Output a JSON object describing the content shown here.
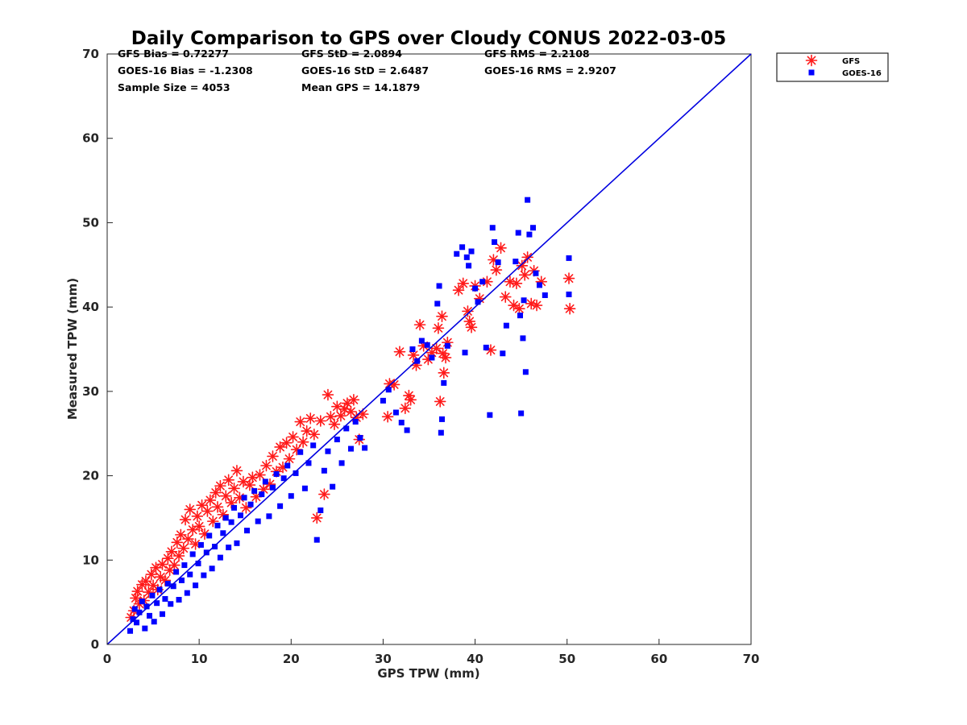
{
  "chart_data": {
    "type": "scatter",
    "title": "Daily Comparison to GPS over Cloudy CONUS 2022-03-05",
    "xlabel": "GPS TPW (mm)",
    "ylabel": "Measured TPW (mm)",
    "xlim": [
      0,
      70
    ],
    "ylim": [
      0,
      70
    ],
    "xticks": [
      "0",
      "10",
      "20",
      "30",
      "40",
      "50",
      "60",
      "70"
    ],
    "yticks": [
      "0",
      "10",
      "20",
      "30",
      "40",
      "50",
      "60",
      "70"
    ],
    "grid": false,
    "legend_position": "outside-top-right",
    "reference_line": {
      "x": [
        0,
        70
      ],
      "y": [
        0,
        70
      ],
      "color": "#0000e0"
    },
    "stats": [
      [
        "GFS Bias = 0.72277",
        "GFS StD = 2.0894",
        "GFS RMS = 2.2108"
      ],
      [
        "GOES-16 Bias = -1.2308",
        "GOES-16 StD = 2.6487",
        "GOES-16 RMS = 2.9207"
      ],
      [
        "Sample Size = 4053",
        "Mean GPS = 14.1879",
        ""
      ]
    ],
    "series": [
      {
        "name": "GFS",
        "marker": "asterisk",
        "color": "#ff1a1a",
        "points": [
          [
            2.6,
            3.2
          ],
          [
            2.9,
            4.0
          ],
          [
            3.1,
            5.5
          ],
          [
            3.3,
            6.3
          ],
          [
            3.5,
            4.8
          ],
          [
            3.8,
            7.1
          ],
          [
            4.0,
            5.2
          ],
          [
            4.2,
            7.5
          ],
          [
            4.5,
            6.2
          ],
          [
            4.8,
            8.3
          ],
          [
            5.0,
            7.0
          ],
          [
            5.3,
            9.1
          ],
          [
            5.5,
            6.5
          ],
          [
            5.8,
            8.0
          ],
          [
            6.0,
            9.5
          ],
          [
            6.3,
            7.6
          ],
          [
            6.6,
            10.2
          ],
          [
            6.8,
            8.8
          ],
          [
            7.0,
            11.0
          ],
          [
            7.3,
            9.4
          ],
          [
            7.6,
            12.1
          ],
          [
            7.8,
            10.5
          ],
          [
            8.0,
            13.0
          ],
          [
            8.3,
            11.4
          ],
          [
            8.5,
            14.8
          ],
          [
            8.8,
            12.5
          ],
          [
            9.0,
            16.0
          ],
          [
            9.3,
            13.6
          ],
          [
            9.6,
            11.9
          ],
          [
            9.8,
            15.2
          ],
          [
            10.0,
            14.0
          ],
          [
            10.3,
            16.5
          ],
          [
            10.6,
            13.1
          ],
          [
            10.9,
            15.8
          ],
          [
            11.2,
            17.1
          ],
          [
            11.5,
            14.6
          ],
          [
            11.8,
            18.0
          ],
          [
            12.0,
            16.3
          ],
          [
            12.3,
            18.8
          ],
          [
            12.6,
            15.4
          ],
          [
            12.9,
            17.6
          ],
          [
            13.2,
            19.5
          ],
          [
            13.5,
            16.8
          ],
          [
            13.8,
            18.5
          ],
          [
            14.1,
            20.6
          ],
          [
            14.4,
            17.4
          ],
          [
            14.8,
            19.3
          ],
          [
            15.1,
            16.2
          ],
          [
            15.5,
            18.9
          ],
          [
            15.8,
            19.8
          ],
          [
            16.2,
            17.5
          ],
          [
            16.6,
            20.1
          ],
          [
            17.0,
            18.4
          ],
          [
            17.3,
            21.2
          ],
          [
            17.7,
            19.0
          ],
          [
            18.0,
            22.3
          ],
          [
            18.4,
            20.5
          ],
          [
            18.8,
            23.4
          ],
          [
            19.1,
            21.0
          ],
          [
            19.5,
            23.9
          ],
          [
            19.8,
            22.0
          ],
          [
            20.2,
            24.6
          ],
          [
            20.6,
            23.1
          ],
          [
            21.0,
            26.4
          ],
          [
            21.3,
            24.0
          ],
          [
            21.7,
            25.3
          ],
          [
            22.1,
            26.8
          ],
          [
            22.5,
            24.9
          ],
          [
            22.8,
            15.0
          ],
          [
            23.2,
            26.5
          ],
          [
            23.6,
            17.8
          ],
          [
            24.0,
            29.6
          ],
          [
            24.3,
            27.0
          ],
          [
            24.7,
            26.1
          ],
          [
            25.0,
            28.2
          ],
          [
            25.4,
            27.1
          ],
          [
            25.8,
            27.9
          ],
          [
            26.1,
            28.6
          ],
          [
            26.5,
            27.6
          ],
          [
            26.8,
            29.0
          ],
          [
            27.1,
            26.9
          ],
          [
            27.4,
            24.3
          ],
          [
            27.8,
            27.3
          ],
          [
            30.5,
            27.0
          ],
          [
            31.2,
            30.8
          ],
          [
            31.8,
            34.7
          ],
          [
            32.4,
            28.0
          ],
          [
            32.8,
            29.5
          ],
          [
            33.3,
            34.3
          ],
          [
            33.6,
            33.1
          ],
          [
            34.0,
            37.9
          ],
          [
            34.4,
            35.4
          ],
          [
            34.9,
            33.8
          ],
          [
            35.3,
            34.6
          ],
          [
            35.8,
            35.1
          ],
          [
            36.0,
            37.5
          ],
          [
            36.2,
            28.8
          ],
          [
            36.4,
            38.9
          ],
          [
            36.6,
            32.2
          ],
          [
            36.8,
            34.0
          ],
          [
            37.0,
            35.8
          ],
          [
            38.2,
            42.0
          ],
          [
            38.7,
            42.8
          ],
          [
            39.2,
            39.5
          ],
          [
            39.4,
            38.3
          ],
          [
            39.6,
            37.6
          ],
          [
            40.0,
            42.5
          ],
          [
            40.5,
            41.0
          ],
          [
            41.3,
            43.0
          ],
          [
            41.7,
            34.9
          ],
          [
            42.0,
            45.6
          ],
          [
            42.3,
            44.4
          ],
          [
            42.8,
            47.0
          ],
          [
            43.3,
            41.2
          ],
          [
            43.8,
            43.0
          ],
          [
            44.2,
            40.2
          ],
          [
            44.5,
            42.8
          ],
          [
            44.8,
            39.8
          ],
          [
            45.1,
            44.9
          ],
          [
            45.4,
            43.8
          ],
          [
            45.7,
            45.9
          ],
          [
            46.1,
            40.4
          ],
          [
            46.4,
            44.3
          ],
          [
            46.7,
            40.2
          ],
          [
            47.2,
            43.0
          ],
          [
            50.2,
            43.4
          ],
          [
            50.3,
            39.8
          ],
          [
            30.7,
            30.9
          ],
          [
            33.0,
            29.0
          ],
          [
            36.5,
            34.5
          ]
        ]
      },
      {
        "name": "GOES-16",
        "marker": "square",
        "color": "#0000ff",
        "points": [
          [
            2.5,
            1.6
          ],
          [
            2.8,
            3.0
          ],
          [
            3.0,
            4.2
          ],
          [
            3.2,
            2.6
          ],
          [
            3.5,
            3.8
          ],
          [
            3.8,
            5.1
          ],
          [
            4.1,
            1.9
          ],
          [
            4.3,
            4.5
          ],
          [
            4.6,
            3.4
          ],
          [
            4.9,
            5.8
          ],
          [
            5.1,
            2.7
          ],
          [
            5.4,
            4.9
          ],
          [
            5.7,
            6.5
          ],
          [
            6.0,
            3.6
          ],
          [
            6.3,
            5.4
          ],
          [
            6.6,
            7.2
          ],
          [
            6.9,
            4.8
          ],
          [
            7.2,
            6.9
          ],
          [
            7.5,
            8.6
          ],
          [
            7.8,
            5.3
          ],
          [
            8.1,
            7.6
          ],
          [
            8.4,
            9.4
          ],
          [
            8.7,
            6.1
          ],
          [
            9.0,
            8.3
          ],
          [
            9.3,
            10.7
          ],
          [
            9.6,
            7.0
          ],
          [
            9.9,
            9.6
          ],
          [
            10.2,
            11.8
          ],
          [
            10.5,
            8.2
          ],
          [
            10.8,
            10.9
          ],
          [
            11.1,
            12.9
          ],
          [
            11.4,
            9.0
          ],
          [
            11.7,
            11.6
          ],
          [
            12.0,
            14.1
          ],
          [
            12.3,
            10.3
          ],
          [
            12.6,
            13.2
          ],
          [
            12.9,
            15.0
          ],
          [
            13.2,
            11.5
          ],
          [
            13.5,
            14.5
          ],
          [
            13.8,
            16.2
          ],
          [
            14.1,
            12.0
          ],
          [
            14.5,
            15.3
          ],
          [
            14.9,
            17.4
          ],
          [
            15.2,
            13.5
          ],
          [
            15.6,
            16.6
          ],
          [
            16.0,
            18.2
          ],
          [
            16.4,
            14.6
          ],
          [
            16.8,
            17.8
          ],
          [
            17.2,
            19.3
          ],
          [
            17.6,
            15.2
          ],
          [
            18.0,
            18.6
          ],
          [
            18.4,
            20.2
          ],
          [
            18.8,
            16.4
          ],
          [
            19.2,
            19.7
          ],
          [
            19.6,
            21.2
          ],
          [
            20.0,
            17.6
          ],
          [
            20.5,
            20.3
          ],
          [
            21.0,
            22.8
          ],
          [
            21.5,
            18.5
          ],
          [
            21.9,
            21.5
          ],
          [
            22.4,
            23.6
          ],
          [
            22.8,
            12.4
          ],
          [
            23.2,
            15.9
          ],
          [
            23.6,
            20.6
          ],
          [
            24.0,
            22.9
          ],
          [
            24.5,
            18.7
          ],
          [
            25.0,
            24.3
          ],
          [
            25.5,
            21.5
          ],
          [
            26.0,
            25.6
          ],
          [
            26.5,
            23.2
          ],
          [
            27.0,
            26.4
          ],
          [
            27.5,
            24.5
          ],
          [
            28.0,
            23.3
          ],
          [
            30.0,
            28.9
          ],
          [
            30.6,
            30.2
          ],
          [
            31.4,
            27.5
          ],
          [
            32.0,
            26.3
          ],
          [
            32.6,
            25.4
          ],
          [
            33.2,
            35.0
          ],
          [
            33.7,
            33.6
          ],
          [
            34.2,
            36.0
          ],
          [
            34.8,
            35.5
          ],
          [
            35.3,
            34.0
          ],
          [
            35.9,
            40.4
          ],
          [
            36.1,
            42.5
          ],
          [
            36.3,
            25.1
          ],
          [
            36.4,
            26.7
          ],
          [
            36.6,
            31.0
          ],
          [
            37.0,
            35.4
          ],
          [
            38.0,
            46.3
          ],
          [
            38.6,
            47.1
          ],
          [
            39.1,
            45.9
          ],
          [
            39.3,
            44.9
          ],
          [
            39.6,
            46.6
          ],
          [
            40.0,
            42.2
          ],
          [
            40.3,
            40.6
          ],
          [
            40.8,
            43.0
          ],
          [
            41.6,
            27.2
          ],
          [
            41.9,
            49.4
          ],
          [
            42.1,
            47.7
          ],
          [
            42.5,
            45.3
          ],
          [
            43.0,
            34.5
          ],
          [
            43.4,
            37.8
          ],
          [
            44.4,
            45.4
          ],
          [
            44.7,
            48.8
          ],
          [
            45.0,
            27.4
          ],
          [
            45.2,
            36.3
          ],
          [
            45.5,
            32.3
          ],
          [
            45.7,
            52.7
          ],
          [
            45.9,
            48.6
          ],
          [
            46.3,
            49.4
          ],
          [
            46.6,
            44.0
          ],
          [
            47.0,
            42.6
          ],
          [
            47.6,
            41.4
          ],
          [
            50.2,
            45.8
          ],
          [
            50.2,
            41.5
          ],
          [
            38.9,
            34.6
          ],
          [
            41.2,
            35.2
          ],
          [
            44.9,
            39.0
          ],
          [
            45.3,
            40.8
          ]
        ]
      }
    ]
  }
}
